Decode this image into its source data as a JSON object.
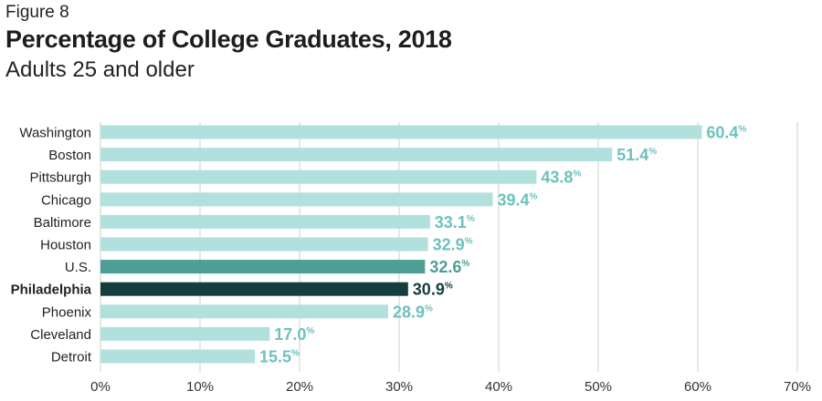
{
  "figure_label": "Figure 8",
  "colors": {
    "bar_default": "#b2e0dd",
    "bar_us": "#4d9e94",
    "bar_highlight": "#163e3e",
    "label_default": "#6cc2bd",
    "label_us": "#4d9e94",
    "label_highlight": "#163e3e",
    "grid": "#cfcfcf",
    "axis_text": "#333333"
  },
  "chart_data": {
    "type": "bar",
    "orientation": "horizontal",
    "title": "Percentage of College Graduates, 2018",
    "subtitle": "Adults 25 and older",
    "categories": [
      "Washington",
      "Boston",
      "Pittsburgh",
      "Chicago",
      "Baltimore",
      "Houston",
      "U.S.",
      "Philadelphia",
      "Phoenix",
      "Cleveland",
      "Detroit"
    ],
    "values": [
      60.4,
      51.4,
      43.8,
      39.4,
      33.1,
      32.9,
      32.6,
      30.9,
      28.9,
      17.0,
      15.5
    ],
    "value_labels": [
      "60.4",
      "51.4",
      "43.8",
      "39.4",
      "33.1",
      "32.9",
      "32.6",
      "30.9",
      "28.9",
      "17.0",
      "15.5"
    ],
    "unit_symbol": "%",
    "highlight": "Philadelphia",
    "benchmark": "U.S.",
    "xlim": [
      0,
      70
    ],
    "xticks": [
      0,
      10,
      20,
      30,
      40,
      50,
      60,
      70
    ],
    "xtick_labels": [
      "0%",
      "10%",
      "20%",
      "30%",
      "40%",
      "50%",
      "60%",
      "70%"
    ],
    "grid": true,
    "xlabel": "",
    "ylabel": ""
  }
}
